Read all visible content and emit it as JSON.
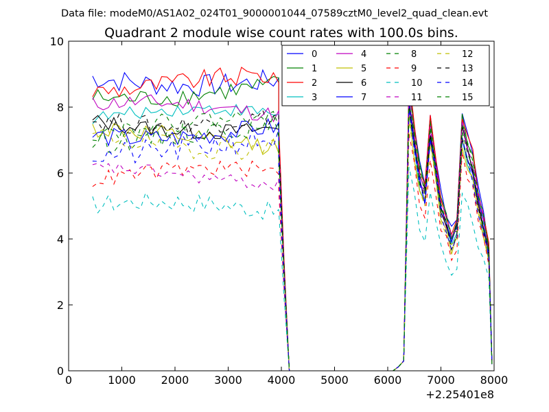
{
  "header": {
    "suptitle": "Data file: modeM0/AS1A02_024T01_9000001044_07589cztM0_level2_quad_clean.evt"
  },
  "chart_data": {
    "type": "line",
    "title": "Quadrant 2 module wise count rates with 100.0s bins.",
    "xlabel": "",
    "ylabel": "",
    "xlim": [
      0,
      8000
    ],
    "ylim": [
      0,
      10
    ],
    "x_offset_label": "+2.25401e8",
    "xticks": [
      0,
      1000,
      2000,
      3000,
      4000,
      5000,
      6000,
      7000,
      8000
    ],
    "xtick_labels": [
      "0",
      "1000",
      "2000",
      "3000",
      "4000",
      "5000",
      "6000",
      "7000",
      "8000"
    ],
    "yticks": [
      0,
      2,
      4,
      6,
      8,
      10
    ],
    "ytick_labels": [
      "0",
      "2",
      "4",
      "6",
      "8",
      "10"
    ],
    "legend_position": "upper-right",
    "legend_columns": 4,
    "gap_x": [
      4100,
      4300,
      4500,
      4700,
      4900,
      5100,
      5300,
      5500,
      5700,
      5900,
      6100
    ],
    "drop_x": [
      4050,
      4150
    ],
    "rise_x": [
      6200,
      6300
    ],
    "rise_levels": [
      0.12,
      0.3
    ],
    "end_drop_x": [
      7960
    ],
    "series": [
      {
        "name": "0",
        "color": "#0000ff",
        "dash": "solid",
        "base": 8.9,
        "amp": 0.35,
        "drop": 7.1,
        "peak": 9.2
      },
      {
        "name": "1",
        "color": "#008000",
        "dash": "solid",
        "base": 8.5,
        "amp": 0.3,
        "drop": 7.0,
        "peak": 9.0
      },
      {
        "name": "2",
        "color": "#ff0000",
        "dash": "solid",
        "base": 8.7,
        "amp": 0.3,
        "drop": 7.5,
        "peak": 9.1
      },
      {
        "name": "3",
        "color": "#00bfbf",
        "dash": "solid",
        "base": 7.7,
        "amp": 0.2,
        "drop": 6.8,
        "peak": 8.2
      },
      {
        "name": "4",
        "color": "#bf00bf",
        "dash": "solid",
        "base": 7.9,
        "amp": 0.25,
        "drop": 7.0,
        "peak": 8.5
      },
      {
        "name": "5",
        "color": "#bfbf00",
        "dash": "solid",
        "base": 7.1,
        "amp": 0.3,
        "drop": 6.5,
        "peak": 8.0
      },
      {
        "name": "6",
        "color": "#000000",
        "dash": "solid",
        "base": 7.5,
        "amp": 0.25,
        "drop": 6.7,
        "peak": 8.6
      },
      {
        "name": "7",
        "color": "#0000ff",
        "dash": "solid",
        "base": 7.3,
        "amp": 0.3,
        "drop": 6.6,
        "peak": 8.4
      },
      {
        "name": "8",
        "color": "#008000",
        "dash": "dashed",
        "base": 7.2,
        "amp": 0.35,
        "drop": 6.9,
        "peak": 8.8
      },
      {
        "name": "9",
        "color": "#ff0000",
        "dash": "dashed",
        "base": 5.9,
        "amp": 0.25,
        "drop": 5.5,
        "peak": 7.6
      },
      {
        "name": "10",
        "color": "#00bfbf",
        "dash": "dashed",
        "base": 4.9,
        "amp": 0.3,
        "drop": 4.9,
        "peak": 6.4
      },
      {
        "name": "11",
        "color": "#bf00bf",
        "dash": "dashed",
        "base": 5.9,
        "amp": 0.2,
        "drop": 5.8,
        "peak": 8.8
      },
      {
        "name": "12",
        "color": "#bfbf00",
        "dash": "dashed",
        "base": 7.0,
        "amp": 0.35,
        "drop": 6.3,
        "peak": 8.0
      },
      {
        "name": "13",
        "color": "#000000",
        "dash": "dashed",
        "base": 7.7,
        "amp": 0.3,
        "drop": 7.0,
        "peak": 8.3
      },
      {
        "name": "14",
        "color": "#0000ff",
        "dash": "dashed",
        "base": 6.8,
        "amp": 0.4,
        "drop": 6.2,
        "peak": 8.1
      },
      {
        "name": "15",
        "color": "#008000",
        "dash": "dashed",
        "base": 7.4,
        "amp": 0.3,
        "drop": 6.6,
        "peak": 8.6
      }
    ]
  }
}
